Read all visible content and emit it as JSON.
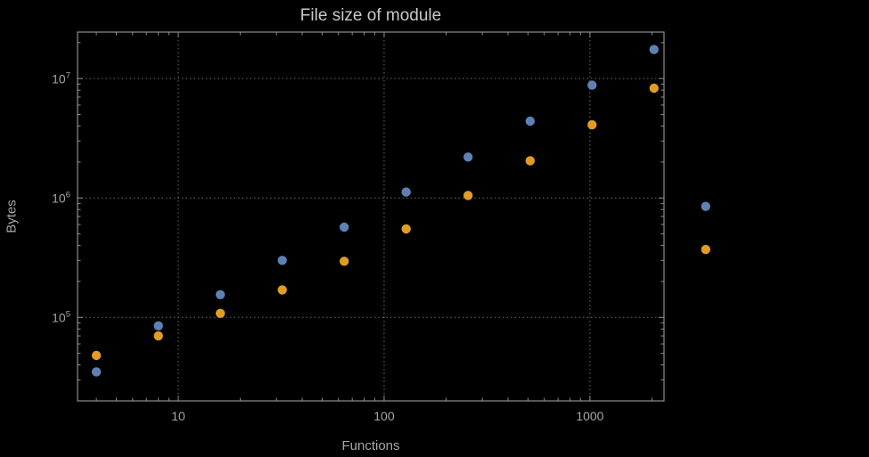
{
  "chart_data": {
    "type": "scatter",
    "title": "File size of module",
    "xlabel": "Functions",
    "ylabel": "Bytes",
    "x_scale": "log",
    "y_scale": "log",
    "xlim": [
      3.24,
      2290
    ],
    "ylim": [
      20000,
      24500000
    ],
    "grid": "dotted",
    "legend_position": "right-center-unlabeled",
    "x_ticks": [
      {
        "value": 10,
        "label": "10"
      },
      {
        "value": 100,
        "label": "100"
      },
      {
        "value": 1000,
        "label": "1000"
      }
    ],
    "y_ticks": [
      {
        "value": 100000,
        "base": "10",
        "exp": "5"
      },
      {
        "value": 1000000,
        "base": "10",
        "exp": "6"
      },
      {
        "value": 10000000,
        "base": "10",
        "exp": "7"
      }
    ],
    "series": [
      {
        "name": "blue",
        "color": "#5e81b5",
        "x": [
          4,
          8,
          16,
          32,
          64,
          128,
          256,
          512,
          1024,
          2048
        ],
        "y": [
          35000,
          85000,
          155000,
          300000,
          570000,
          1120000,
          2200000,
          4400000,
          8800000,
          17500000
        ]
      },
      {
        "name": "orange",
        "color": "#e19c24",
        "x": [
          4,
          8,
          16,
          32,
          64,
          128,
          256,
          512,
          1024,
          2048
        ],
        "y": [
          48000,
          70000,
          108000,
          170000,
          295000,
          550000,
          1050000,
          2050000,
          4100000,
          8300000
        ]
      }
    ],
    "legend_markers": [
      {
        "color": "#5e81b5",
        "x": 3650,
        "y": 850000
      },
      {
        "color": "#e19c24",
        "x": 3650,
        "y": 370000
      }
    ],
    "style": {
      "background": "#000000",
      "frame_color": "#8e8e8e",
      "grid_color": "#6f6f6f",
      "tick_color": "#8e8e8e",
      "title_color": "#c8c8c8",
      "label_color": "#a6a6a6",
      "tick_label_color": "#a6a6a6"
    }
  }
}
